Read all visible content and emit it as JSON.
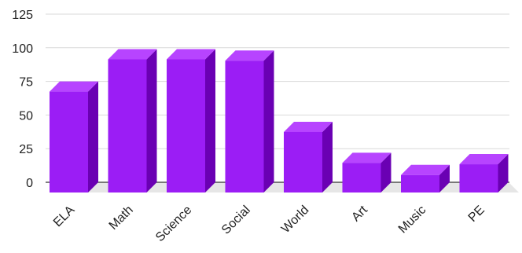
{
  "chart_data": {
    "type": "bar",
    "categories": [
      "ELA",
      "Math",
      "Science",
      "Social",
      "World",
      "Art",
      "Music",
      "PE"
    ],
    "values": [
      75,
      99,
      99,
      98,
      45,
      22,
      13,
      21
    ],
    "title": "",
    "xlabel": "",
    "ylabel": "",
    "ylim": [
      0,
      125
    ],
    "yticks": [
      "0",
      "25",
      "50",
      "75",
      "100",
      "125"
    ],
    "grid": true,
    "legend": "none",
    "style": "3d-columns"
  },
  "colors": {
    "bar_front": "#9B1DF5",
    "bar_top": "#B744FF",
    "bar_side": "#6A00B3",
    "floor": "#E6E6E6",
    "gridline": "#D9D9D9",
    "baseline": "#333333"
  }
}
